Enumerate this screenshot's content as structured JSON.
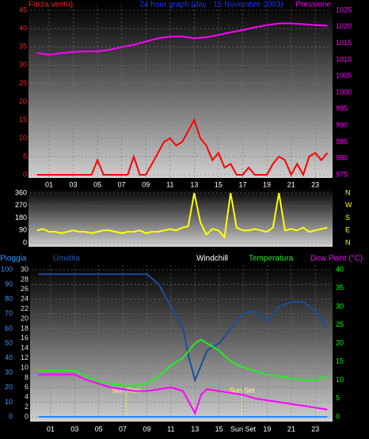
{
  "chart_data": [
    {
      "type": "line",
      "y_label": "Forza vento)",
      "title": "24 hour graph (day : 15 Novembre 2003)",
      "y2_label": "Pressione",
      "xlim": [
        -0.57,
        24.3
      ],
      "xticks": [
        {
          "value": 1,
          "label": "01"
        },
        {
          "value": 3,
          "label": "03"
        },
        {
          "value": 5,
          "label": "05"
        },
        {
          "value": 7,
          "label": "07"
        },
        {
          "value": 9,
          "label": "09"
        },
        {
          "value": 11,
          "label": "11"
        },
        {
          "value": 13,
          "label": "13"
        },
        {
          "value": 15,
          "label": "15"
        },
        {
          "value": 17,
          "label": "17"
        },
        {
          "value": 19,
          "label": "19"
        },
        {
          "value": 21,
          "label": "21"
        },
        {
          "value": 23,
          "label": "23"
        }
      ],
      "ylim": [
        0,
        45
      ],
      "yticks": [
        0,
        5,
        10,
        15,
        20,
        25,
        30,
        35,
        40,
        45
      ],
      "ytick_color": "#ff2020",
      "y2lim": [
        975,
        1025
      ],
      "y2ticks": [
        975,
        980,
        985,
        990,
        995,
        1000,
        1005,
        1010,
        1015,
        1020,
        1025
      ],
      "y2tick_color": "#ff00ff",
      "grid": true,
      "series": [
        {
          "color": "#ff0000",
          "axis": "y",
          "x": [
            0,
            0.5,
            1,
            1.5,
            2,
            2.5,
            3,
            3.5,
            4,
            4.5,
            5,
            5.5,
            6,
            6.5,
            7,
            7.5,
            8,
            8.5,
            9,
            9.5,
            10,
            10.5,
            11,
            11.5,
            12,
            12.5,
            13,
            13.5,
            14,
            14.5,
            15,
            15.5,
            16,
            16.5,
            17,
            17.5,
            18,
            18.5,
            19,
            19.5,
            20,
            20.5,
            21,
            21.5,
            22,
            22.5,
            23,
            23.5,
            24
          ],
          "values": [
            0,
            0,
            0,
            0,
            0,
            0,
            0,
            0,
            0,
            0,
            4,
            0,
            0,
            0,
            0,
            0,
            5,
            0,
            0,
            3,
            6,
            9,
            10,
            8,
            9,
            12,
            15,
            10,
            8,
            4,
            6,
            2,
            3,
            0,
            0,
            2,
            0,
            0,
            0,
            3,
            5,
            4,
            0,
            3,
            0,
            5,
            6,
            4,
            6
          ]
        },
        {
          "color": "#ff00ff",
          "axis": "y2",
          "x": [
            0,
            1,
            2,
            3,
            4,
            5,
            6,
            7,
            8,
            9,
            10,
            11,
            12,
            13,
            14,
            15,
            16,
            17,
            18,
            19,
            20,
            21,
            22,
            23,
            24
          ],
          "values": [
            1012,
            1011.5,
            1012,
            1012.3,
            1012.5,
            1012.5,
            1013,
            1013.8,
            1014.5,
            1015.5,
            1016.5,
            1017,
            1017,
            1016.5,
            1016.8,
            1017.5,
            1018.3,
            1019,
            1019.8,
            1020.5,
            1021,
            1021,
            1020.8,
            1020.5,
            1020.3
          ]
        }
      ]
    },
    {
      "type": "line",
      "xlim": [
        -0.57,
        24.3
      ],
      "ylim": [
        0,
        360
      ],
      "yticks": [
        0,
        90,
        180,
        270,
        360
      ],
      "ytick_color": "#ffffff",
      "y2lim": [
        0,
        360
      ],
      "y2ticks": [
        {
          "value": 0,
          "label": "N"
        },
        {
          "value": 90,
          "label": "E"
        },
        {
          "value": 180,
          "label": "S"
        },
        {
          "value": 270,
          "label": "W"
        },
        {
          "value": 360,
          "label": "N"
        }
      ],
      "y2tick_color": "#ffff00",
      "grid": true,
      "series": [
        {
          "color": "#ffff00",
          "axis": "y",
          "x": [
            0,
            0.5,
            1,
            1.5,
            2,
            2.5,
            3,
            3.5,
            4,
            4.5,
            5,
            5.5,
            6,
            6.5,
            7,
            7.5,
            8,
            8.5,
            9,
            9.5,
            10,
            10.5,
            11,
            11.5,
            12,
            12.5,
            13,
            13.5,
            14,
            14.5,
            15,
            15.5,
            16,
            16.5,
            17,
            17.5,
            18,
            18.5,
            19,
            19.5,
            20,
            20.5,
            21,
            21.5,
            22,
            22.5,
            23,
            23.5,
            24
          ],
          "values": [
            90,
            100,
            80,
            80,
            70,
            80,
            90,
            80,
            80,
            70,
            80,
            90,
            90,
            80,
            70,
            80,
            80,
            90,
            70,
            80,
            80,
            90,
            100,
            90,
            110,
            120,
            360,
            150,
            60,
            100,
            90,
            40,
            360,
            110,
            90,
            90,
            100,
            90,
            80,
            110,
            360,
            90,
            100,
            90,
            110,
            80,
            90,
            100,
            110
          ]
        }
      ]
    },
    {
      "type": "line",
      "labels": [
        "Windchill"
      ],
      "xlim": [
        -0.57,
        24.3
      ],
      "xticks": [
        {
          "value": 1,
          "label": "01"
        },
        {
          "value": 3,
          "label": "03"
        },
        {
          "value": 5,
          "label": "05"
        },
        {
          "value": 7,
          "label": "07"
        },
        {
          "value": 9,
          "label": "09"
        },
        {
          "value": 11,
          "label": "11"
        },
        {
          "value": 13,
          "label": "13"
        },
        {
          "value": 15,
          "label": "15"
        },
        {
          "value": 17,
          "label": "Sun Set"
        },
        {
          "value": 19,
          "label": "19"
        },
        {
          "value": 21,
          "label": "21"
        },
        {
          "value": 23,
          "label": "23"
        }
      ],
      "ylim": [
        0,
        100
      ],
      "yticks": [
        0,
        10,
        20,
        30,
        40,
        50,
        60,
        70,
        80,
        90,
        100
      ],
      "ytick_color": "#3399ff",
      "y3lim": [
        0,
        30
      ],
      "y3ticks": [
        0,
        2,
        4,
        6,
        8,
        10,
        12,
        14,
        16,
        18,
        20,
        22,
        24,
        26,
        28,
        30
      ],
      "y3tick_color": "#dddddd",
      "y2lim": [
        0,
        40
      ],
      "y2ticks": [
        0,
        5,
        10,
        15,
        20,
        25,
        30,
        35,
        40
      ],
      "y2tick_color": "#00ff00",
      "grid": true,
      "annotations": [
        {
          "text": "Sun Rise",
          "x": 7.3
        },
        {
          "text": "Sun Set",
          "x": 16.9
        }
      ],
      "series": [
        {
          "name": "Pioggia",
          "color": "#1e88ff",
          "axis": "y3",
          "x": [
            0,
            1,
            2,
            3,
            4,
            5,
            6,
            7,
            8,
            9,
            10,
            11,
            12,
            12.5,
            13,
            13.5,
            14,
            15,
            16,
            17,
            18,
            19,
            20,
            21,
            22,
            23,
            24
          ],
          "values": [
            0,
            0,
            0,
            0,
            0,
            0,
            0,
            0,
            0,
            0,
            0,
            0,
            0,
            0,
            0,
            0,
            0,
            0,
            0,
            0,
            0,
            0,
            0,
            0,
            0,
            0,
            0
          ]
        },
        {
          "name": "Umidita",
          "color": "#1a4f9a",
          "axis": "y",
          "x": [
            0,
            1,
            2,
            3,
            4,
            5,
            6,
            7,
            8,
            9,
            10,
            11,
            12,
            12.5,
            13,
            13.5,
            14,
            15,
            16,
            17,
            18,
            19,
            20,
            21,
            22,
            23,
            24
          ],
          "values": [
            97,
            97,
            97,
            97,
            97,
            97,
            97,
            97,
            97,
            97,
            90,
            75,
            60,
            40,
            25,
            35,
            45,
            50,
            60,
            70,
            72,
            65,
            75,
            78,
            78,
            72,
            60
          ]
        },
        {
          "name": "Temperatura",
          "color": "#22ee22",
          "axis": "y2",
          "x": [
            0,
            1,
            2,
            3,
            4,
            5,
            6,
            7,
            8,
            9,
            10,
            11,
            12,
            12.5,
            13,
            13.5,
            14,
            15,
            16,
            17,
            18,
            19,
            20,
            21,
            22,
            23,
            24
          ],
          "values": [
            12.5,
            12.5,
            12.5,
            12.5,
            11,
            9.5,
            9,
            8.5,
            8.5,
            9,
            11,
            14,
            16,
            18,
            20,
            21,
            20,
            18,
            15,
            13.5,
            12.5,
            11.5,
            11,
            10.5,
            10,
            10,
            11
          ]
        },
        {
          "name": "Dew Point (°C)",
          "color": "#ff00ff",
          "axis": "y2",
          "x": [
            0,
            1,
            2,
            3,
            4,
            5,
            6,
            7,
            8,
            9,
            10,
            11,
            12,
            12.5,
            13,
            13.5,
            14,
            15,
            16,
            17,
            18,
            19,
            20,
            21,
            22,
            23,
            24
          ],
          "values": [
            11.5,
            11.5,
            11.5,
            11.5,
            10,
            9,
            8,
            7.5,
            7,
            7,
            7.5,
            8,
            7,
            4,
            1,
            6,
            7.5,
            7,
            6.5,
            6,
            5,
            4.5,
            4,
            3.5,
            3,
            2.5,
            2
          ]
        }
      ]
    }
  ]
}
